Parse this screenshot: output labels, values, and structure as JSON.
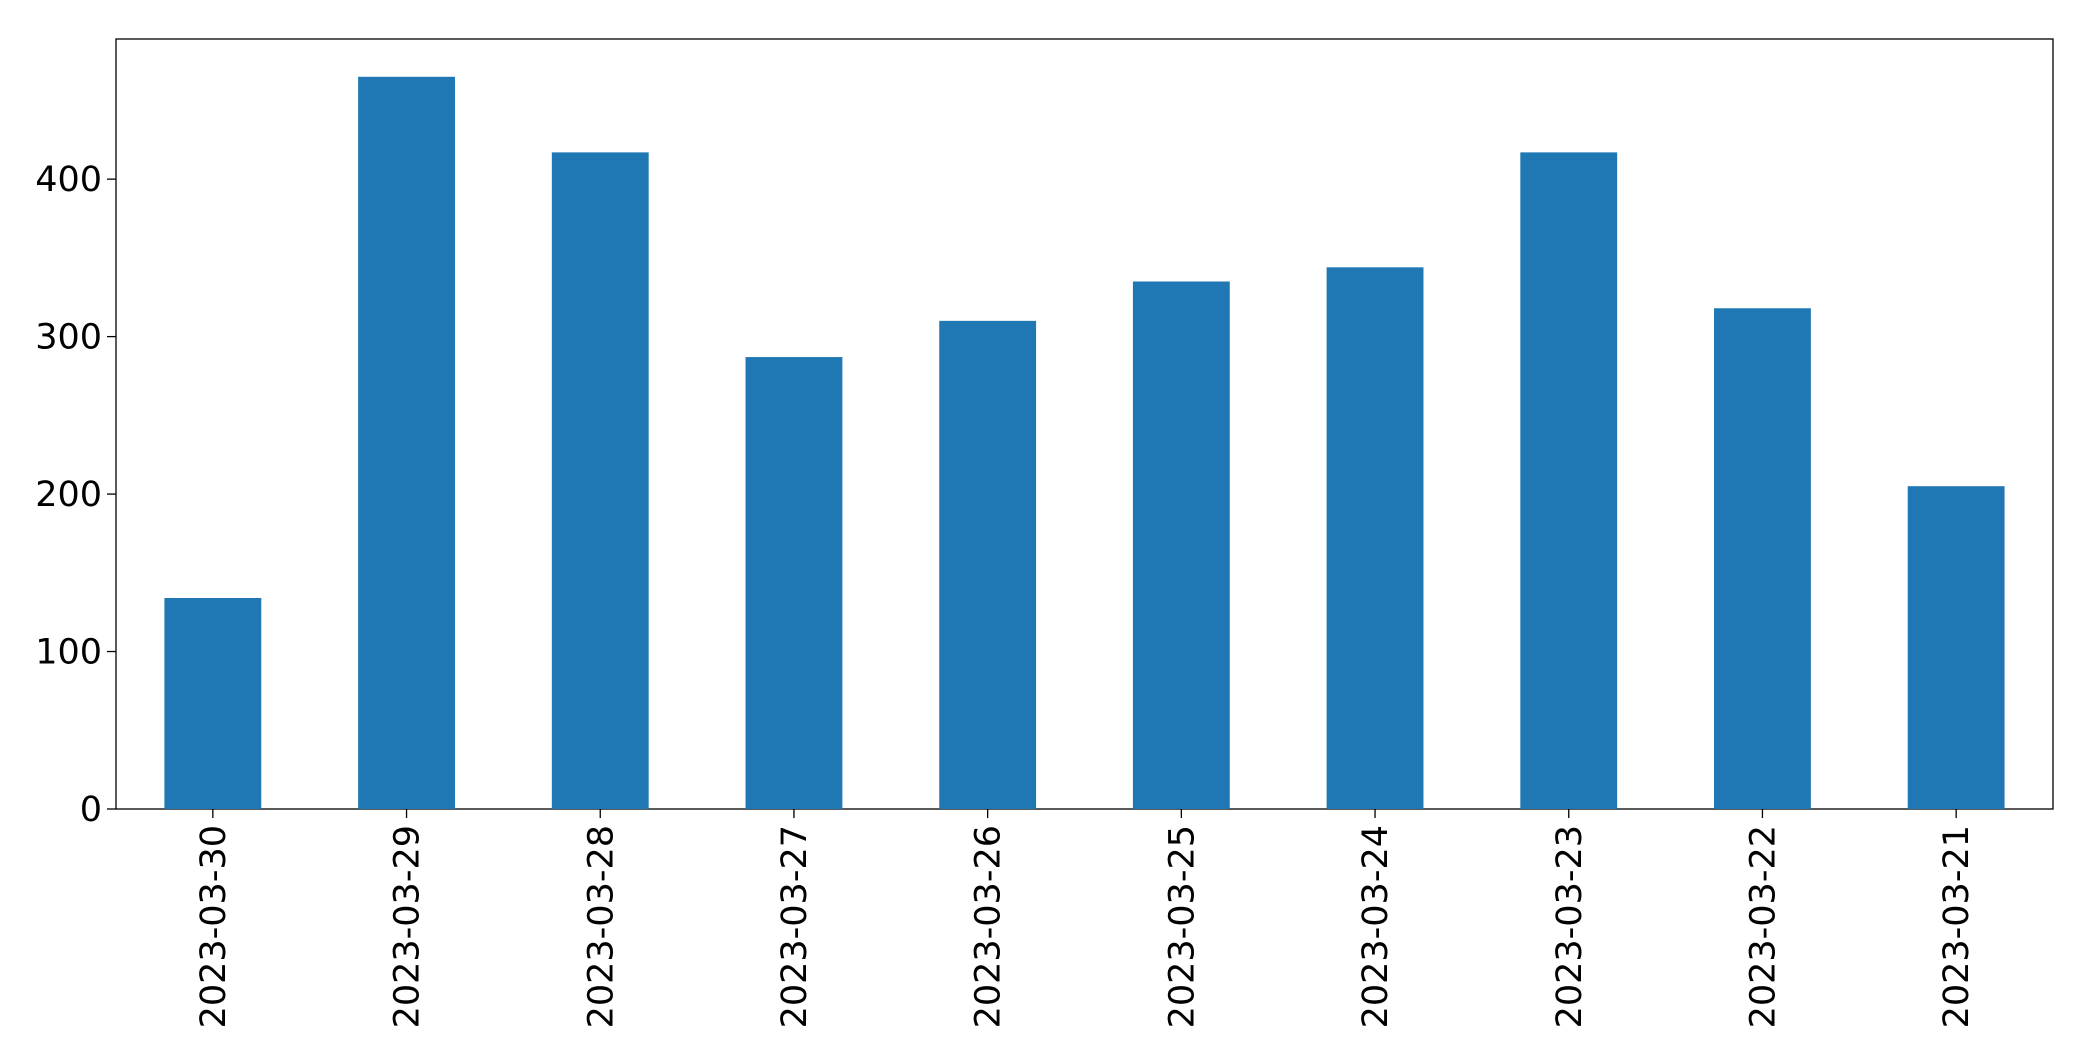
{
  "chart_data": {
    "type": "bar",
    "categories": [
      "2023-03-30",
      "2023-03-29",
      "2023-03-28",
      "2023-03-27",
      "2023-03-26",
      "2023-03-25",
      "2023-03-24",
      "2023-03-23",
      "2023-03-22",
      "2023-03-21"
    ],
    "values": [
      134,
      465,
      417,
      287,
      310,
      335,
      344,
      417,
      318,
      205
    ],
    "color": "#1f77b4",
    "ylim": [
      0,
      489
    ],
    "yticks": [
      0,
      100,
      200,
      300,
      400
    ],
    "grid": false
  }
}
